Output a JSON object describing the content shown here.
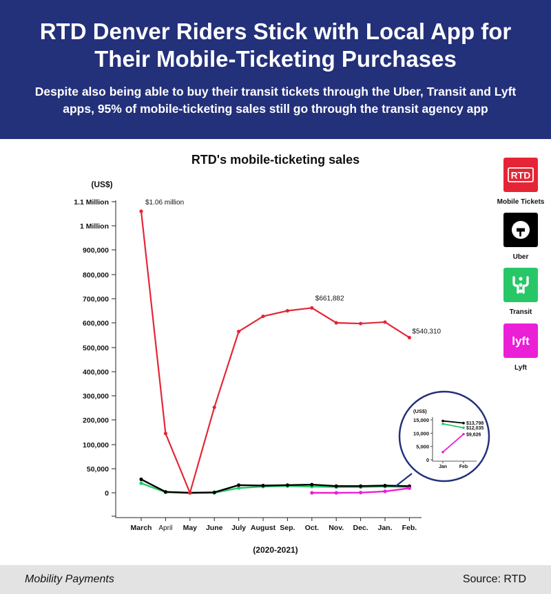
{
  "header": {
    "title": "RTD Denver Riders Stick with Local App for Their Mobile-Ticketing Purchases",
    "subtitle": "Despite also being able to buy their transit tickets through the Uber, Transit and Lyft apps, 95% of mobile-ticketing sales still go through the transit agency app"
  },
  "legend": [
    {
      "name": "Mobile Tickets",
      "icon": "rtd-logo-icon",
      "color": "#e52535"
    },
    {
      "name": "Uber",
      "icon": "uber-logo-icon",
      "color": "#000000"
    },
    {
      "name": "Transit",
      "icon": "transit-logo-icon",
      "color": "#27c768"
    },
    {
      "name": "Lyft",
      "icon": "lyft-logo-icon",
      "color": "#ea1fd6"
    }
  ],
  "footer": {
    "brand": "Mobility Payments",
    "source": "Source: RTD"
  },
  "chart_data": [
    {
      "type": "line",
      "title": "RTD's mobile-ticketing sales",
      "ylabel": "(US$)",
      "xlabel": "(2020-2021)",
      "categories": [
        "March",
        "April",
        "May",
        "June",
        "July",
        "August",
        "Sep.",
        "Oct.",
        "Nov.",
        "Dec.",
        "Jan.",
        "Feb."
      ],
      "ylim": [
        -100000,
        1200000
      ],
      "yticks": [
        {
          "value": 1100000,
          "label": "1.1 Million"
        },
        {
          "value": 1000000,
          "label": "1 Million"
        },
        {
          "value": 900000,
          "label": "900,000"
        },
        {
          "value": 800000,
          "label": "800,000"
        },
        {
          "value": 700000,
          "label": "700,000"
        },
        {
          "value": 600000,
          "label": "600,000"
        },
        {
          "value": 500000,
          "label": "500,000"
        },
        {
          "value": 400000,
          "label": "400,000"
        },
        {
          "value": 300000,
          "label": "300,000"
        },
        {
          "value": 200000,
          "label": "200,000"
        },
        {
          "value": 100000,
          "label": "100,000"
        },
        {
          "value": 50000,
          "label": "50,000"
        },
        {
          "value": 0,
          "label": "0"
        }
      ],
      "series": [
        {
          "name": "Mobile Tickets",
          "color": "#e52535",
          "values": [
            1060000,
            145000,
            0,
            252000,
            565000,
            627000,
            650000,
            661882,
            600000,
            597000,
            603000,
            540310
          ]
        },
        {
          "name": "Uber",
          "color": "#000000",
          "values": [
            28000,
            2000,
            0,
            1000,
            16000,
            15000,
            16000,
            17000,
            14000,
            14000,
            15000,
            13798
          ]
        },
        {
          "name": "Transit",
          "color": "#27c768",
          "values": [
            20000,
            1000,
            0,
            0,
            10000,
            13000,
            14000,
            13000,
            12000,
            12000,
            13000,
            12035
          ]
        },
        {
          "name": "Lyft",
          "color": "#ea1fd6",
          "values": [
            null,
            null,
            null,
            null,
            null,
            null,
            null,
            0,
            0,
            500,
            3000,
            9626
          ]
        }
      ],
      "annotations": [
        {
          "series": "Mobile Tickets",
          "category": "March",
          "text": "$1.06 million"
        },
        {
          "series": "Mobile Tickets",
          "category": "Oct.",
          "text": "$661,882"
        },
        {
          "series": "Mobile Tickets",
          "category": "Feb.",
          "text": "$540,310"
        }
      ]
    },
    {
      "type": "line",
      "title": "",
      "ylabel": "(US$)",
      "categories": [
        "Jan",
        "Feb"
      ],
      "ylim": [
        0,
        15000
      ],
      "yticks": [
        {
          "value": 15000,
          "label": "15,000"
        },
        {
          "value": 10000,
          "label": "10,000"
        },
        {
          "value": 5000,
          "label": "5,000"
        },
        {
          "value": 0,
          "label": "0"
        }
      ],
      "series": [
        {
          "name": "Uber",
          "color": "#000000",
          "values": [
            14600,
            13798
          ],
          "end_label": "$13,798"
        },
        {
          "name": "Transit",
          "color": "#27c768",
          "values": [
            13500,
            12035
          ],
          "end_label": "$12,035"
        },
        {
          "name": "Lyft",
          "color": "#ea1fd6",
          "values": [
            2900,
            9626
          ],
          "end_label": "$9,626"
        }
      ]
    }
  ]
}
